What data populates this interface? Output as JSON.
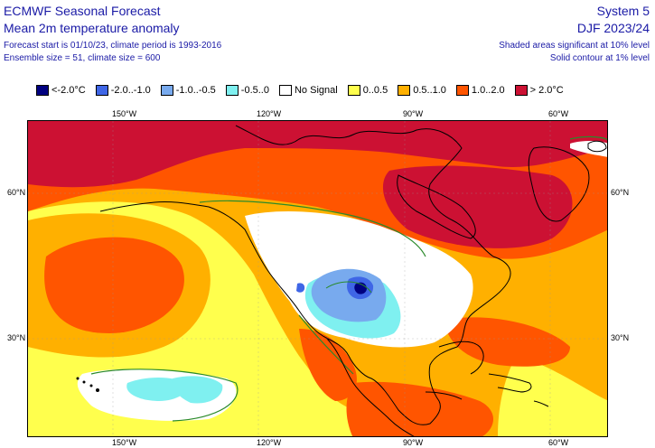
{
  "header": {
    "left_title": "ECMWF Seasonal Forecast",
    "left_subtitle": "Mean 2m temperature anomaly",
    "left_info_1": "Forecast start is 01/10/23, climate period is 1993-2016",
    "left_info_2": "Ensemble size = 51, climate size = 600",
    "right_title": "System 5",
    "right_subtitle": "DJF 2023/24",
    "right_info_1": "Shaded areas significant at 10% level",
    "right_info_2": "Solid contour at 1% level"
  },
  "legend": [
    {
      "label": "<-2.0°C",
      "color": "#000080"
    },
    {
      "label": "-2.0..-1.0",
      "color": "#3f66e6"
    },
    {
      "label": "-1.0..-0.5",
      "color": "#78aaee"
    },
    {
      "label": "-0.5..0",
      "color": "#7ff0f0"
    },
    {
      "label": "No Signal",
      "color": "#ffffff"
    },
    {
      "label": "0..0.5",
      "color": "#ffff4d"
    },
    {
      "label": "0.5..1.0",
      "color": "#ffb000"
    },
    {
      "label": "1.0..2.0",
      "color": "#ff5500"
    },
    {
      "label": "> 2.0°C",
      "color": "#cc1133"
    }
  ],
  "axes": {
    "lon_top": [
      "150°W",
      "120°W",
      "90°W",
      "60°W"
    ],
    "lon_bottom": [
      "150°W",
      "120°W",
      "90°W",
      "60°W"
    ],
    "lat_left": [
      "60°N",
      "30°N"
    ],
    "lat_right": [
      "60°N",
      "30°N"
    ]
  }
}
